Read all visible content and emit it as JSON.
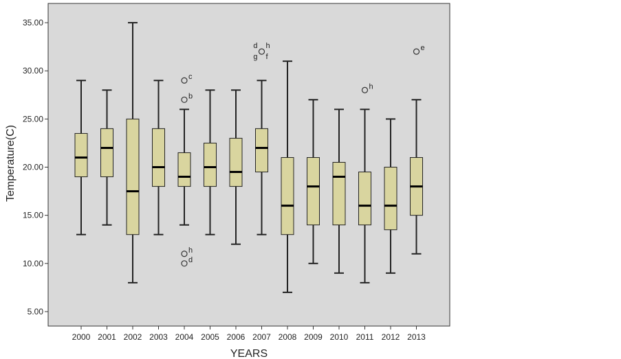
{
  "chart_data": {
    "type": "boxplot",
    "xlabel": "YEARS",
    "ylabel": "Temperature(C)",
    "ylim": [
      3.5,
      37
    ],
    "yticks": [
      "5.00",
      "10.00",
      "15.00",
      "20.00",
      "25.00",
      "30.00",
      "35.00"
    ],
    "ytick_values": [
      5,
      10,
      15,
      20,
      25,
      30,
      35
    ],
    "grid": false,
    "colors": {
      "plot_bg": "#d9d9d9",
      "box_fill": "#d9d59f",
      "box_stroke": "#222222"
    },
    "categories": [
      "2000",
      "2001",
      "2002",
      "2003",
      "2004",
      "2005",
      "2006",
      "2007",
      "2008",
      "2009",
      "2010",
      "2011",
      "2012",
      "2013"
    ],
    "boxes": [
      {
        "min": 13,
        "q1": 19,
        "median": 21,
        "q3": 23.5,
        "max": 29
      },
      {
        "min": 14,
        "q1": 19,
        "median": 22,
        "q3": 24,
        "max": 28
      },
      {
        "min": 8,
        "q1": 13,
        "median": 17.5,
        "q3": 25,
        "max": 35
      },
      {
        "min": 13,
        "q1": 18,
        "median": 20,
        "q3": 24,
        "max": 29
      },
      {
        "min": 14,
        "q1": 18,
        "median": 19,
        "q3": 21.5,
        "max": 26
      },
      {
        "min": 13,
        "q1": 18,
        "median": 20,
        "q3": 22.5,
        "max": 28
      },
      {
        "min": 12,
        "q1": 18,
        "median": 19.5,
        "q3": 23,
        "max": 28
      },
      {
        "min": 13,
        "q1": 19.5,
        "median": 22,
        "q3": 24,
        "max": 29
      },
      {
        "min": 7,
        "q1": 13,
        "median": 16,
        "q3": 21,
        "max": 31
      },
      {
        "min": 10,
        "q1": 14,
        "median": 18,
        "q3": 21,
        "max": 27
      },
      {
        "min": 9,
        "q1": 14,
        "median": 19,
        "q3": 20.5,
        "max": 26
      },
      {
        "min": 8,
        "q1": 14,
        "median": 16,
        "q3": 19.5,
        "max": 26
      },
      {
        "min": 9,
        "q1": 13.5,
        "median": 16,
        "q3": 20,
        "max": 25
      },
      {
        "min": 11,
        "q1": 15,
        "median": 18,
        "q3": 21,
        "max": 27
      }
    ],
    "outliers": [
      {
        "category": "2004",
        "value": 29,
        "label": "c"
      },
      {
        "category": "2004",
        "value": 27,
        "label": "b"
      },
      {
        "category": "2004",
        "value": 11,
        "label": "h"
      },
      {
        "category": "2004",
        "value": 10,
        "label": "d"
      },
      {
        "category": "2007",
        "value": 32,
        "label": ""
      },
      {
        "category": "2011",
        "value": 28,
        "label": "h"
      },
      {
        "category": "2013",
        "value": 32,
        "label": "e"
      }
    ],
    "outlier_label_cluster_2007": [
      "d",
      "h",
      "g",
      "f"
    ]
  }
}
